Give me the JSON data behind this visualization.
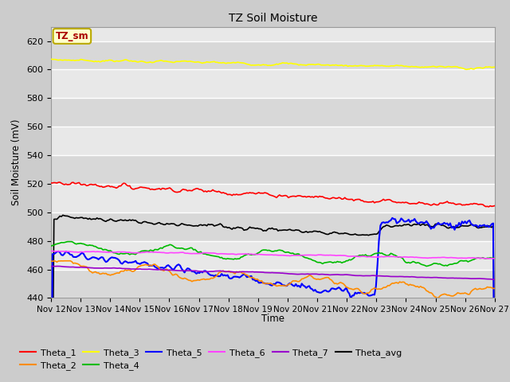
{
  "title": "TZ Soil Moisture",
  "ylabel": "Soil Moisture (mV)",
  "xlabel": "Time",
  "ylim": [
    440,
    630
  ],
  "yticks": [
    440,
    460,
    480,
    500,
    520,
    540,
    560,
    580,
    600,
    620
  ],
  "date_labels": [
    "Nov 12",
    "Nov 13",
    "Nov 14",
    "Nov 15",
    "Nov 16",
    "Nov 17",
    "Nov 18",
    "Nov 19",
    "Nov 20",
    "Nov 21",
    "Nov 22",
    "Nov 23",
    "Nov 24",
    "Nov 25",
    "Nov 26",
    "Nov 27"
  ],
  "n_points": 300,
  "series_colors": {
    "Theta_1": "#ff0000",
    "Theta_2": "#ff8c00",
    "Theta_3": "#ffff00",
    "Theta_4": "#00bb00",
    "Theta_5": "#0000ff",
    "Theta_6": "#ff44ff",
    "Theta_7": "#9900cc",
    "Theta_avg": "#000000"
  },
  "legend_box_facecolor": "#ffffcc",
  "legend_box_edgecolor": "#bbaa00",
  "legend_box_textcolor": "#aa0000",
  "fig_facecolor": "#cccccc",
  "axes_facecolor": "#e8e8e8",
  "grid_color": "#ffffff"
}
